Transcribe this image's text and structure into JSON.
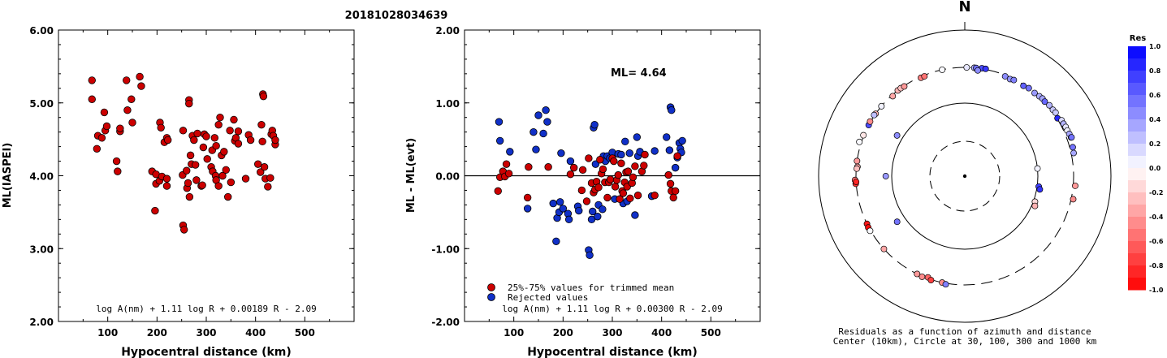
{
  "figure_title": "20181028034639",
  "chart_data": [
    {
      "type": "scatter",
      "ylabel": "ML(IASPEI)",
      "xlabel": "Hypocentral distance (km)",
      "xlim": [
        0,
        600
      ],
      "ylim": [
        2,
        6
      ],
      "xticks": [
        "100",
        "200",
        "300",
        "400",
        "500"
      ],
      "yticks": [
        "2.00",
        "3.00",
        "4.00",
        "5.00",
        "6.00"
      ],
      "formula": "log A(nm) + 1.11 log R + 0.00189 R - 2.09",
      "marker_color": "#cc0000",
      "points": [
        [
          68,
          5.31
        ],
        [
          68,
          5.05
        ],
        [
          78,
          4.37
        ],
        [
          80,
          4.55
        ],
        [
          88,
          4.52
        ],
        [
          93,
          4.87
        ],
        [
          95,
          4.62
        ],
        [
          98,
          4.68
        ],
        [
          118,
          4.2
        ],
        [
          120,
          4.06
        ],
        [
          125,
          4.61
        ],
        [
          125,
          4.65
        ],
        [
          138,
          5.31
        ],
        [
          140,
          4.9
        ],
        [
          148,
          5.05
        ],
        [
          150,
          4.73
        ],
        [
          165,
          5.36
        ],
        [
          168,
          5.23
        ],
        [
          190,
          4.06
        ],
        [
          196,
          3.52
        ],
        [
          198,
          3.89
        ],
        [
          198,
          4.02
        ],
        [
          205,
          3.93
        ],
        [
          206,
          4.73
        ],
        [
          208,
          4.66
        ],
        [
          210,
          3.99
        ],
        [
          215,
          4.46
        ],
        [
          220,
          4.52
        ],
        [
          220,
          3.86
        ],
        [
          220,
          3.96
        ],
        [
          222,
          4.49
        ],
        [
          252,
          4.01
        ],
        [
          253,
          4.62
        ],
        [
          253,
          3.32
        ],
        [
          255,
          3.26
        ],
        [
          260,
          4.07
        ],
        [
          261,
          3.83
        ],
        [
          263,
          3.9
        ],
        [
          265,
          5.04
        ],
        [
          265,
          4.99
        ],
        [
          266,
          3.71
        ],
        [
          268,
          4.28
        ],
        [
          270,
          4.16
        ],
        [
          272,
          4.55
        ],
        [
          275,
          4.49
        ],
        [
          278,
          4.15
        ],
        [
          280,
          3.94
        ],
        [
          282,
          4.58
        ],
        [
          290,
          3.86
        ],
        [
          292,
          3.87
        ],
        [
          294,
          4.39
        ],
        [
          296,
          4.57
        ],
        [
          300,
          4.54
        ],
        [
          302,
          4.23
        ],
        [
          310,
          4.12
        ],
        [
          312,
          4.35
        ],
        [
          313,
          4.06
        ],
        [
          317,
          4.52
        ],
        [
          319,
          4.0
        ],
        [
          320,
          4.41
        ],
        [
          320,
          3.94
        ],
        [
          325,
          3.86
        ],
        [
          325,
          4.7
        ],
        [
          328,
          4.8
        ],
        [
          331,
          4.28
        ],
        [
          333,
          4.0
        ],
        [
          336,
          4.33
        ],
        [
          340,
          4.08
        ],
        [
          344,
          3.71
        ],
        [
          348,
          4.62
        ],
        [
          350,
          3.91
        ],
        [
          356,
          4.77
        ],
        [
          358,
          4.48
        ],
        [
          360,
          4.52
        ],
        [
          365,
          4.44
        ],
        [
          365,
          4.61
        ],
        [
          380,
          3.96
        ],
        [
          386,
          4.56
        ],
        [
          390,
          4.49
        ],
        [
          405,
          4.16
        ],
        [
          410,
          4.05
        ],
        [
          412,
          4.7
        ],
        [
          414,
          4.47
        ],
        [
          415,
          5.12
        ],
        [
          416,
          5.09
        ],
        [
          418,
          4.12
        ],
        [
          420,
          3.96
        ],
        [
          425,
          3.85
        ],
        [
          430,
          3.97
        ],
        [
          432,
          4.57
        ],
        [
          434,
          4.62
        ],
        [
          436,
          4.55
        ],
        [
          440,
          4.43
        ],
        [
          440,
          4.49
        ]
      ]
    },
    {
      "type": "scatter",
      "ylabel": "ML - ML(evt)",
      "xlabel": "Hypocentral distance (km)",
      "xlim": [
        0,
        600
      ],
      "ylim": [
        -2,
        2
      ],
      "xticks": [
        "100",
        "200",
        "300",
        "400",
        "500"
      ],
      "yticks": [
        "-2.00",
        "-1.00",
        "0.00",
        "1.00",
        "2.00"
      ],
      "ml_label": "ML= 4.64",
      "formula": "log A(nm) + 1.11 log R + 0.00300 R - 2.09",
      "legend": [
        "25%-75% values for trimmed mean",
        "Rejected values"
      ],
      "colors": {
        "trimmed": "#cc0000",
        "rejected": "#1030c8"
      },
      "trimmed": [
        [
          68,
          -0.21
        ],
        [
          72,
          -0.02
        ],
        [
          78,
          0.06
        ],
        [
          82,
          -0.01
        ],
        [
          85,
          0.16
        ],
        [
          90,
          0.03
        ],
        [
          128,
          -0.3
        ],
        [
          130,
          0.12
        ],
        [
          170,
          0.12
        ],
        [
          215,
          0.02
        ],
        [
          222,
          0.11
        ],
        [
          238,
          -0.2
        ],
        [
          240,
          0.08
        ],
        [
          248,
          -0.35
        ],
        [
          252,
          0.24
        ],
        [
          258,
          -0.1
        ],
        [
          262,
          -0.23
        ],
        [
          265,
          -0.19
        ],
        [
          268,
          -0.08
        ],
        [
          272,
          -0.16
        ],
        [
          275,
          0.22
        ],
        [
          278,
          0.03
        ],
        [
          281,
          0.09
        ],
        [
          285,
          -0.09
        ],
        [
          290,
          -0.3
        ],
        [
          293,
          -0.09
        ],
        [
          296,
          -0.05
        ],
        [
          300,
          0.24
        ],
        [
          303,
          0.2
        ],
        [
          306,
          -0.15
        ],
        [
          309,
          -0.06
        ],
        [
          312,
          0.01
        ],
        [
          315,
          -0.32
        ],
        [
          318,
          0.17
        ],
        [
          320,
          -0.21
        ],
        [
          322,
          -0.24
        ],
        [
          325,
          -0.09
        ],
        [
          328,
          0.05
        ],
        [
          330,
          -0.15
        ],
        [
          332,
          0.06
        ],
        [
          336,
          -0.31
        ],
        [
          340,
          -0.1
        ],
        [
          342,
          -0.02
        ],
        [
          346,
          0.13
        ],
        [
          352,
          -0.27
        ],
        [
          360,
          0.06
        ],
        [
          364,
          0.14
        ],
        [
          366,
          0.29
        ],
        [
          386,
          -0.27
        ],
        [
          414,
          0.01
        ],
        [
          418,
          -0.11
        ],
        [
          420,
          -0.21
        ],
        [
          424,
          -0.3
        ],
        [
          428,
          -0.21
        ],
        [
          432,
          0.27
        ]
      ],
      "rejected": [
        [
          70,
          0.74
        ],
        [
          72,
          0.48
        ],
        [
          92,
          0.33
        ],
        [
          128,
          -0.45
        ],
        [
          140,
          0.6
        ],
        [
          145,
          0.36
        ],
        [
          150,
          0.83
        ],
        [
          160,
          0.58
        ],
        [
          165,
          0.9
        ],
        [
          168,
          0.74
        ],
        [
          180,
          -0.38
        ],
        [
          186,
          -0.9
        ],
        [
          188,
          -0.58
        ],
        [
          192,
          -0.5
        ],
        [
          194,
          -0.36
        ],
        [
          196,
          0.31
        ],
        [
          200,
          -0.45
        ],
        [
          210,
          -0.52
        ],
        [
          212,
          -0.6
        ],
        [
          215,
          0.2
        ],
        [
          230,
          -0.42
        ],
        [
          232,
          -0.48
        ],
        [
          252,
          -1.02
        ],
        [
          254,
          -1.09
        ],
        [
          258,
          -0.6
        ],
        [
          260,
          -0.49
        ],
        [
          262,
          0.66
        ],
        [
          264,
          0.7
        ],
        [
          266,
          0.16
        ],
        [
          270,
          -0.56
        ],
        [
          272,
          -0.4
        ],
        [
          280,
          -0.46
        ],
        [
          282,
          0.27
        ],
        [
          286,
          0.2
        ],
        [
          290,
          0.27
        ],
        [
          295,
          0.24
        ],
        [
          300,
          0.32
        ],
        [
          305,
          -0.32
        ],
        [
          312,
          0.3
        ],
        [
          318,
          0.29
        ],
        [
          322,
          -0.38
        ],
        [
          326,
          0.47
        ],
        [
          330,
          -0.35
        ],
        [
          335,
          0.31
        ],
        [
          346,
          -0.54
        ],
        [
          350,
          0.53
        ],
        [
          352,
          0.27
        ],
        [
          356,
          0.33
        ],
        [
          380,
          -0.28
        ],
        [
          386,
          0.34
        ],
        [
          410,
          0.53
        ],
        [
          416,
          0.35
        ],
        [
          418,
          0.94
        ],
        [
          420,
          0.9
        ],
        [
          428,
          0.11
        ],
        [
          432,
          0.25
        ],
        [
          436,
          0.45
        ],
        [
          438,
          0.37
        ],
        [
          440,
          0.32
        ],
        [
          442,
          0.48
        ]
      ]
    },
    {
      "type": "scatter",
      "subtype": "polar",
      "north_label": "N",
      "caption_line1": "Residuals as a function of azimuth and distance",
      "caption_line2": "Center (10km), Circle at 30, 100, 300 and 1000 km",
      "colorbar_title": "Res",
      "colorbar_ticks": [
        "1.0",
        "0.8",
        "0.6",
        "0.4",
        "0.2",
        "0.0",
        "-0.2",
        "-0.4",
        "-0.6",
        "-0.8",
        "-1.0"
      ],
      "colorbar_range": [
        -1,
        1
      ],
      "stations": [
        {
          "az": 348,
          "dist": 300,
          "res": 0.02
        },
        {
          "az": 1,
          "dist": 300,
          "res": 0.1
        },
        {
          "az": 5,
          "dist": 300,
          "res": 0.3
        },
        {
          "az": 6,
          "dist": 300,
          "res": 0.55
        },
        {
          "az": 9,
          "dist": 305,
          "res": 0.7
        },
        {
          "az": 11,
          "dist": 305,
          "res": 0.78
        },
        {
          "az": 7,
          "dist": 280,
          "res": 0.45
        },
        {
          "az": 22,
          "dist": 290,
          "res": 0.45
        },
        {
          "az": 25,
          "dist": 285,
          "res": 0.42
        },
        {
          "az": 27,
          "dist": 292,
          "res": 0.5
        },
        {
          "az": 33,
          "dist": 290,
          "res": 0.62
        },
        {
          "az": 36,
          "dist": 300,
          "res": 0.55
        },
        {
          "az": 40,
          "dist": 298,
          "res": 0.4
        },
        {
          "az": 43,
          "dist": 305,
          "res": 0.32
        },
        {
          "az": 45,
          "dist": 310,
          "res": 0.35
        },
        {
          "az": 47,
          "dist": 305,
          "res": 0.6
        },
        {
          "az": 50,
          "dist": 315,
          "res": 0.3
        },
        {
          "az": 53,
          "dist": 315,
          "res": 0.22
        },
        {
          "az": 55,
          "dist": 320,
          "res": 0.2
        },
        {
          "az": 58,
          "dist": 305,
          "res": 0.85
        },
        {
          "az": 60,
          "dist": 330,
          "res": 0.15
        },
        {
          "az": 62,
          "dist": 330,
          "res": 0.3
        },
        {
          "az": 64,
          "dist": 335,
          "res": 0.1
        },
        {
          "az": 66,
          "dist": 335,
          "res": 0.05
        },
        {
          "az": 68,
          "dist": 340,
          "res": 0.35
        },
        {
          "az": 70,
          "dist": 345,
          "res": 0.3
        },
        {
          "az": 70,
          "dist": 350,
          "res": 0.55
        },
        {
          "az": 318,
          "dist": 290,
          "res": -0.35
        },
        {
          "az": 322,
          "dist": 300,
          "res": -0.3
        },
        {
          "az": 324,
          "dist": 300,
          "res": -0.25
        },
        {
          "az": 326,
          "dist": 295,
          "res": -0.4
        },
        {
          "az": 336,
          "dist": 290,
          "res": -0.5
        },
        {
          "az": 338,
          "dist": 290,
          "res": -0.55
        },
        {
          "az": 310,
          "dist": 300,
          "res": 0.05
        },
        {
          "az": 305,
          "dist": 300,
          "res": -0.3
        },
        {
          "az": 304,
          "dist": 305,
          "res": 0.25
        },
        {
          "az": 298,
          "dist": 300,
          "res": 0.7
        },
        {
          "az": 300,
          "dist": 305,
          "res": -0.45
        },
        {
          "az": 292,
          "dist": 305,
          "res": -0.1
        },
        {
          "az": 288,
          "dist": 320,
          "res": 0.02
        },
        {
          "az": 278,
          "dist": 300,
          "res": -0.4
        },
        {
          "az": 275,
          "dist": 290,
          "res": -0.35
        },
        {
          "az": 274,
          "dist": 295,
          "res": -0.25
        },
        {
          "az": 268,
          "dist": 310,
          "res": -0.55
        },
        {
          "az": 266,
          "dist": 305,
          "res": -0.8
        },
        {
          "az": 267,
          "dist": 300,
          "res": -0.85
        },
        {
          "az": 244,
          "dist": 300,
          "res": -0.9
        },
        {
          "az": 242,
          "dist": 305,
          "res": -0.95
        },
        {
          "az": 240,
          "dist": 305,
          "res": 0.02
        },
        {
          "az": 228,
          "dist": 300,
          "res": -0.35
        },
        {
          "az": 206,
          "dist": 300,
          "res": -0.4
        },
        {
          "az": 203,
          "dist": 305,
          "res": -0.45
        },
        {
          "az": 200,
          "dist": 290,
          "res": -0.6
        },
        {
          "az": 198,
          "dist": 305,
          "res": -0.75
        },
        {
          "az": 192,
          "dist": 300,
          "res": -0.45
        },
        {
          "az": 190,
          "dist": 310,
          "res": 0.5
        },
        {
          "az": 270,
          "dist": 120,
          "res": 0.4
        },
        {
          "az": 301,
          "dist": 120,
          "res": 0.45
        },
        {
          "az": 236,
          "dist": 130,
          "res": 0.55
        },
        {
          "az": 84,
          "dist": 100,
          "res": 0.05
        },
        {
          "az": 98,
          "dist": 105,
          "res": 0.75
        },
        {
          "az": 100,
          "dist": 110,
          "res": 0.8
        },
        {
          "az": 110,
          "dist": 105,
          "res": -0.15
        },
        {
          "az": 113,
          "dist": 110,
          "res": -0.3
        },
        {
          "az": 95,
          "dist": 320,
          "res": -0.4
        },
        {
          "az": 102,
          "dist": 320,
          "res": -0.45
        },
        {
          "az": 75,
          "dist": 330,
          "res": 0.55
        },
        {
          "az": 78,
          "dist": 325,
          "res": 0.35
        }
      ]
    }
  ]
}
